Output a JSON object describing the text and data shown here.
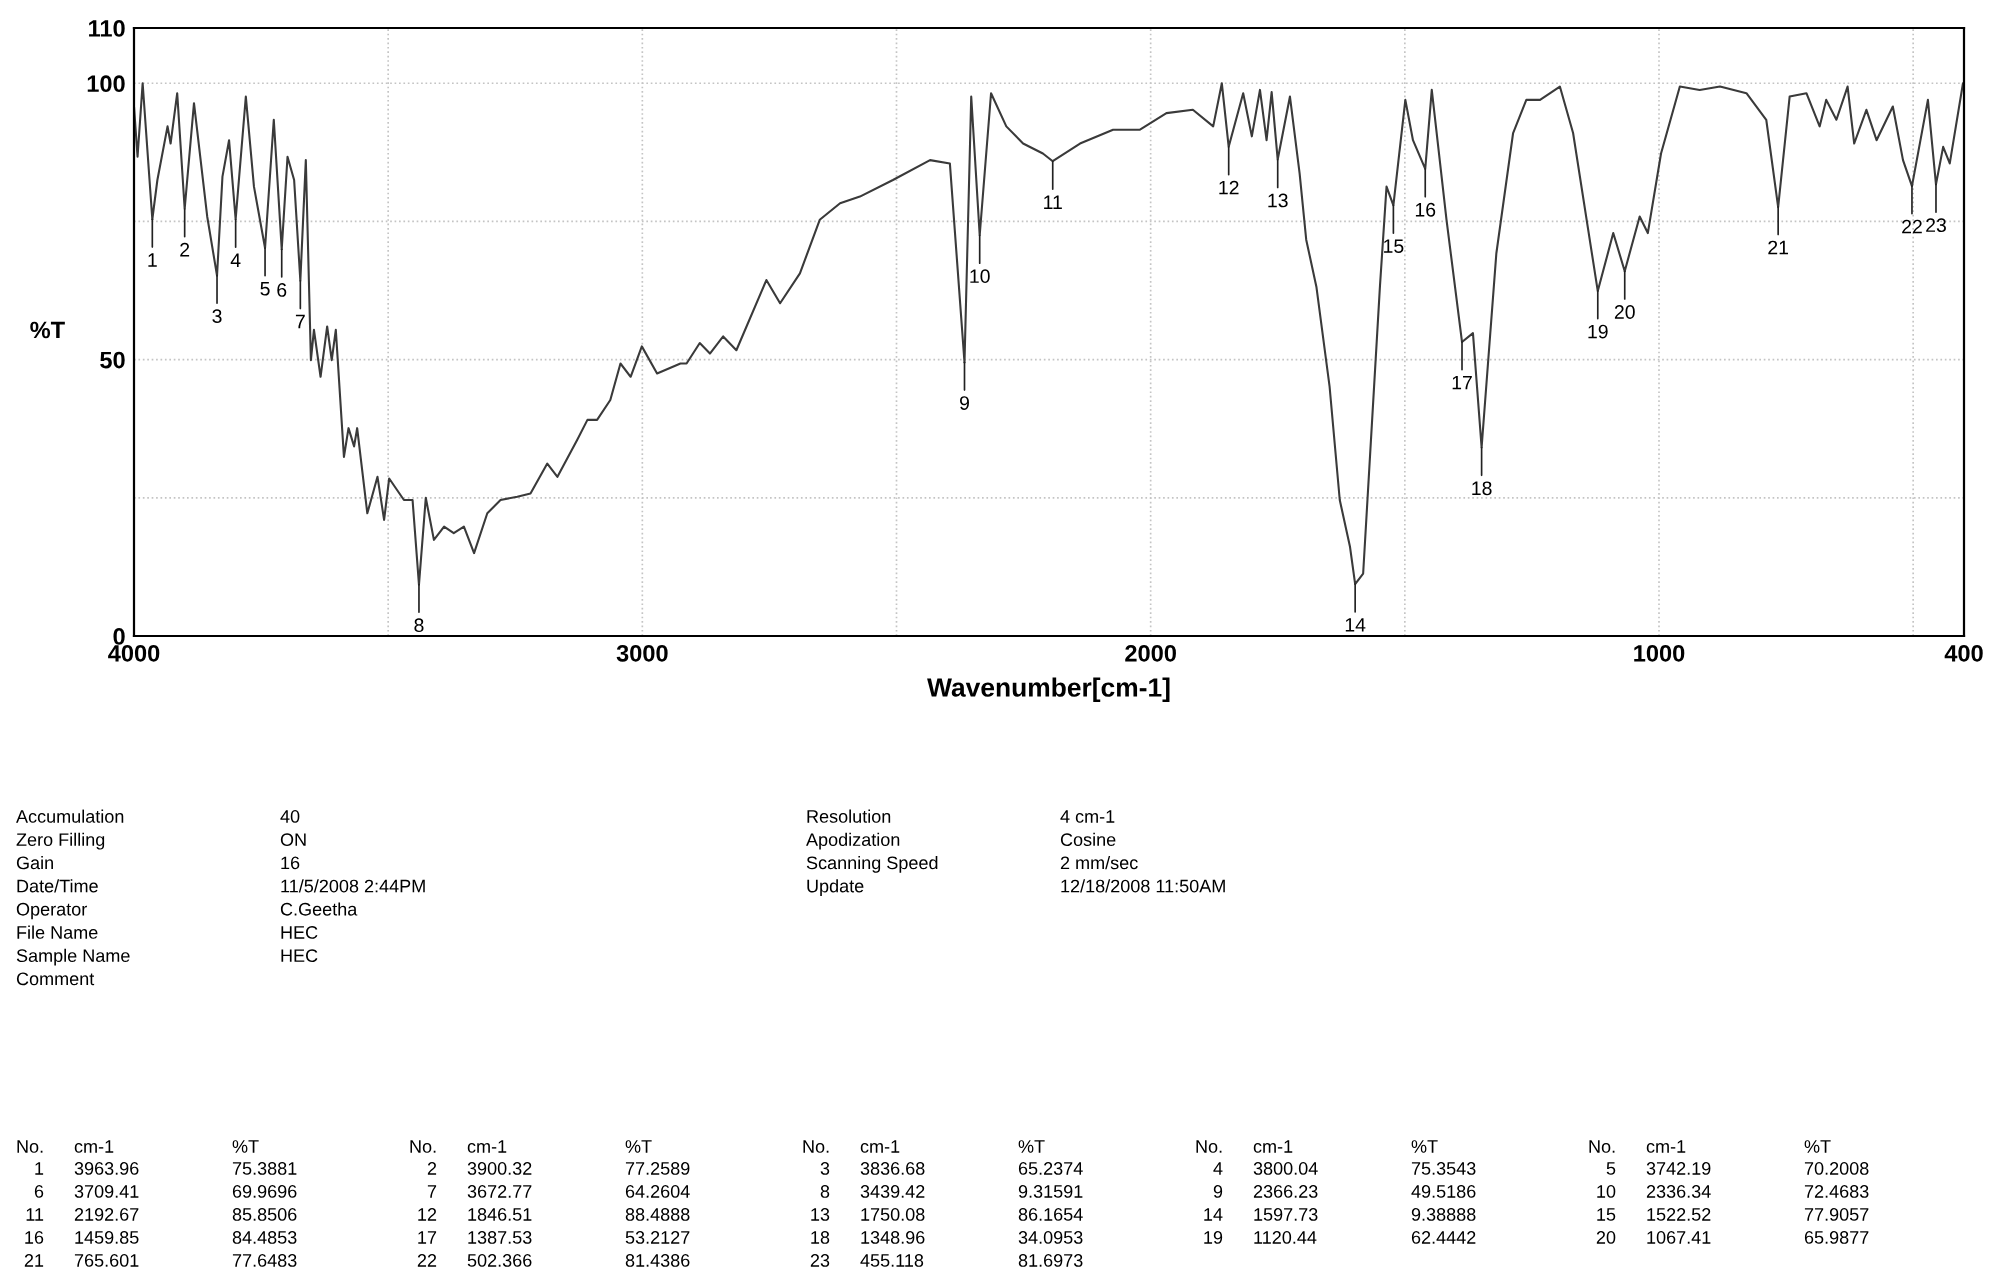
{
  "chart_data": {
    "type": "line",
    "xlabel": "Wavenumber[cm-1]",
    "ylabel": "%T",
    "xlim": [
      4000,
      400
    ],
    "ylim": [
      0,
      110
    ],
    "xticks": [
      4000,
      {
        "value": 3500,
        "label": null
      },
      3000,
      {
        "value": 2500,
        "label": null
      },
      2000,
      {
        "value": 1500,
        "label": null
      },
      1000,
      {
        "value": 500,
        "label": null
      },
      400
    ],
    "yticks": [
      0,
      {
        "value": 25,
        "label": null
      },
      50,
      {
        "value": 75,
        "label": null
      },
      100,
      110
    ],
    "grid": true,
    "legend": false,
    "marker": "none",
    "line_style": "solid",
    "series": [
      {
        "color": "#3a3a3a",
        "x": [
          4000,
          3993,
          3983,
          3963.96,
          3954,
          3934,
          3928,
          3915,
          3900.32,
          3882,
          3856,
          3836.68,
          3826,
          3813,
          3800.04,
          3780,
          3764,
          3742.19,
          3725,
          3709.41,
          3698,
          3685,
          3672.77,
          3662,
          3652,
          3646,
          3633,
          3620,
          3611,
          3603,
          3587,
          3578,
          3567,
          3561,
          3541,
          3521,
          3508,
          3498,
          3469,
          3452,
          3439.42,
          3426,
          3410,
          3390,
          3371,
          3351,
          3331,
          3305,
          3279,
          3246,
          3220,
          3187,
          3167,
          3128,
          3108,
          3089,
          3063,
          3043,
          3023,
          3001,
          2971,
          2925,
          2913,
          2887,
          2867,
          2841,
          2815,
          2756,
          2729,
          2690,
          2651,
          2611,
          2572,
          2507,
          2434,
          2395,
          2366.23,
          2353,
          2336.34,
          2314,
          2284,
          2251,
          2212,
          2192.67,
          2139,
          2074,
          2021,
          1969,
          1917,
          1877,
          1860,
          1846.51,
          1818,
          1801,
          1785,
          1772,
          1762,
          1750.08,
          1726,
          1707,
          1694,
          1674,
          1648,
          1628,
          1608,
          1597.73,
          1582,
          1549,
          1536,
          1522.52,
          1499,
          1484,
          1459.85,
          1447,
          1418,
          1387.53,
          1366,
          1348.96,
          1320,
          1287,
          1261,
          1234,
          1195,
          1169,
          1120.44,
          1090,
          1067.41,
          1038,
          1022,
          996,
          959,
          920,
          880,
          828,
          789,
          765.601,
          743,
          710,
          684,
          671,
          651,
          629,
          616,
          592,
          572,
          540,
          520,
          502.366,
          471,
          455.118,
          441,
          428,
          402
        ],
        "values": [
          95.8,
          86.7,
          100,
          75.4,
          82.5,
          92.2,
          89.1,
          98.2,
          77.3,
          96.4,
          75.9,
          65.2,
          83.1,
          89.7,
          75.4,
          97.6,
          81.3,
          70.2,
          93.4,
          70.0,
          86.7,
          82.5,
          64.3,
          86.1,
          49.9,
          55.4,
          46.9,
          56.0,
          49.9,
          55.4,
          32.4,
          37.6,
          34.3,
          37.6,
          22.2,
          28.8,
          21.0,
          28.5,
          24.6,
          24.6,
          9.3,
          25.0,
          17.4,
          19.8,
          18.6,
          19.8,
          15.0,
          22.2,
          24.6,
          25.2,
          25.8,
          31.2,
          28.8,
          35.5,
          39.1,
          39.1,
          42.7,
          49.3,
          46.9,
          52.4,
          47.5,
          49.3,
          49.3,
          53.0,
          51.1,
          54.2,
          51.7,
          64.4,
          60.2,
          65.6,
          75.3,
          78.3,
          79.5,
          82.5,
          86.1,
          85.5,
          49.5,
          97.6,
          72.5,
          98.2,
          92.2,
          89.1,
          87.3,
          85.9,
          89.1,
          91.6,
          91.6,
          94.6,
          95.2,
          92.2,
          100,
          88.5,
          98.2,
          90.4,
          98.8,
          89.7,
          98.4,
          86.2,
          97.6,
          83.7,
          71.7,
          63.2,
          45.1,
          24.6,
          16.2,
          9.4,
          11.3,
          63.2,
          81.3,
          77.9,
          97.0,
          89.7,
          84.5,
          98.8,
          75.3,
          53.2,
          54.8,
          34.1,
          69.2,
          91.0,
          97.0,
          97.0,
          99.4,
          91.0,
          62.4,
          72.9,
          66.0,
          75.9,
          72.9,
          87.3,
          99.4,
          98.8,
          99.4,
          98.2,
          93.4,
          77.6,
          97.6,
          98.2,
          92.2,
          97.0,
          93.4,
          99.4,
          89.1,
          95.2,
          89.7,
          95.8,
          86.1,
          81.4,
          97.0,
          81.7,
          88.5,
          85.5,
          100
        ]
      }
    ],
    "annotations": [
      {
        "text": "1",
        "x": 3963.96,
        "y": 75.3881
      },
      {
        "text": "2",
        "x": 3900.32,
        "y": 77.2589
      },
      {
        "text": "3",
        "x": 3836.68,
        "y": 65.2374
      },
      {
        "text": "4",
        "x": 3800.04,
        "y": 75.3543
      },
      {
        "text": "5",
        "x": 3742.19,
        "y": 70.2008
      },
      {
        "text": "6",
        "x": 3709.41,
        "y": 69.9696
      },
      {
        "text": "7",
        "x": 3672.77,
        "y": 64.2604
      },
      {
        "text": "8",
        "x": 3439.42,
        "y": 9.31591
      },
      {
        "text": "9",
        "x": 2366.23,
        "y": 49.5186
      },
      {
        "text": "10",
        "x": 2336.34,
        "y": 72.4683
      },
      {
        "text": "11",
        "x": 2192.67,
        "y": 85.8506
      },
      {
        "text": "12",
        "x": 1846.51,
        "y": 88.4888
      },
      {
        "text": "13",
        "x": 1750.08,
        "y": 86.1654
      },
      {
        "text": "14",
        "x": 1597.73,
        "y": 9.38888
      },
      {
        "text": "15",
        "x": 1522.52,
        "y": 77.9057
      },
      {
        "text": "16",
        "x": 1459.85,
        "y": 84.4853
      },
      {
        "text": "17",
        "x": 1387.53,
        "y": 53.2127
      },
      {
        "text": "18",
        "x": 1348.96,
        "y": 34.0953
      },
      {
        "text": "19",
        "x": 1120.44,
        "y": 62.4442
      },
      {
        "text": "20",
        "x": 1067.41,
        "y": 65.9877
      },
      {
        "text": "21",
        "x": 765.601,
        "y": 77.6483
      },
      {
        "text": "22",
        "x": 502.366,
        "y": 81.4386
      },
      {
        "text": "23",
        "x": 455.118,
        "y": 81.6973
      },
      "Accumulation",
      "Zero Filling",
      "Gain",
      "Date/Time",
      "Operator",
      "File Name",
      "Sample Name",
      "Comment",
      "40",
      "ON",
      "16",
      "11/5/2008 2:44PM",
      "C.Geetha",
      "HEC",
      "HEC",
      "Resolution",
      "Apodization",
      "Scanning Speed",
      "Update",
      "4 cm-1",
      "Cosine",
      "2 mm/sec",
      "12/18/2008 11:50AM",
      "No.",
      "cm-1",
      "%T",
      "3963.96",
      "75.3881",
      "3900.32",
      "77.2589",
      "3836.68",
      "65.2374",
      "3800.04",
      "75.3543",
      "3742.19",
      "70.2008",
      "3709.41",
      "69.9696",
      "3672.77",
      "64.2604",
      "3439.42",
      "9.31591",
      "2366.23",
      "49.5186",
      "2336.34",
      "72.4683",
      "2192.67",
      "85.8506",
      "1846.51",
      "88.4888",
      "1750.08",
      "86.1654",
      "1597.73",
      "9.38888",
      "1522.52",
      "77.9057",
      "1459.85",
      "84.4853",
      "1387.53",
      "53.2127",
      "1348.96",
      "34.0953",
      "1120.44",
      "62.4442",
      "1067.41",
      "65.9877",
      "765.601",
      "77.6483",
      "502.366",
      "81.4386",
      "455.118",
      "81.6973"
    ]
  }
}
